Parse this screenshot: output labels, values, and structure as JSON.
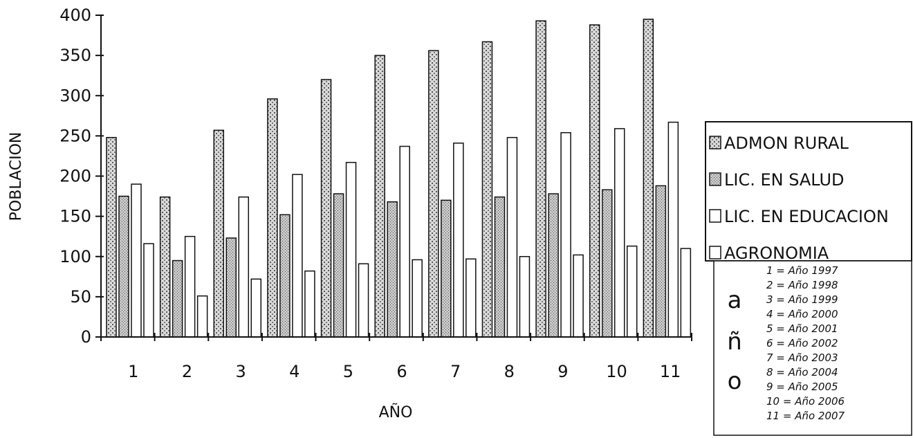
{
  "chart_data": {
    "type": "bar",
    "xlabel": "AÑO",
    "ylabel": "POBLACION",
    "ylim": [
      0,
      400
    ],
    "yticks": [
      0,
      50,
      100,
      150,
      200,
      250,
      300,
      350,
      400
    ],
    "yticklabels": [
      "0",
      "50",
      "100",
      "150",
      "200",
      "250",
      "300",
      "350",
      "400"
    ],
    "categories": [
      "1",
      "2",
      "3",
      "4",
      "5",
      "6",
      "7",
      "8",
      "9",
      "10",
      "11"
    ],
    "series": [
      {
        "name": "ADMON RURAL",
        "color": "#cfcfcf",
        "values": [
          248,
          174,
          257,
          296,
          320,
          350,
          356,
          367,
          393,
          388,
          395
        ]
      },
      {
        "name": "LIC. EN SALUD",
        "color": "#bdbdbd",
        "values": [
          175,
          95,
          123,
          152,
          178,
          168,
          170,
          174,
          178,
          183,
          188
        ]
      },
      {
        "name": "LIC. EN EDUCACION",
        "color": "#ffffff",
        "values": [
          190,
          125,
          174,
          202,
          217,
          237,
          241,
          248,
          254,
          259,
          267
        ]
      },
      {
        "name": "AGRONOMIA",
        "color": "#ffffff",
        "values": [
          116,
          51,
          72,
          82,
          91,
          96,
          97,
          100,
          102,
          113,
          110
        ]
      }
    ],
    "legend_position": "right",
    "grid": false
  },
  "year_key": {
    "letters": [
      "a",
      "ñ",
      "o"
    ],
    "entries": [
      "1 = Año 1997",
      "2 = Año 1998",
      "3 = Año 1999",
      "4 = Año 2000",
      "5 = Año 2001",
      "6 = Año 2002",
      "7 = Año 2003",
      "8 = Año 2004",
      "9 = Año 2005",
      "10 = Año 2006",
      "11 = Año 2007"
    ]
  }
}
